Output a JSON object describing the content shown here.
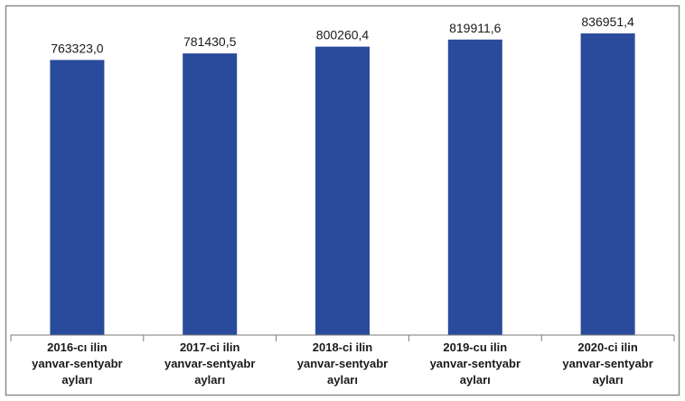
{
  "chart_data": {
    "type": "bar",
    "categories": [
      [
        "2016-cı ilin",
        "yanvar-sentyabr",
        "ayları"
      ],
      [
        "2017-ci ilin",
        "yanvar-sentyabr",
        "ayları"
      ],
      [
        "2018-ci ilin",
        "yanvar-sentyabr",
        "ayları"
      ],
      [
        "2019-cu ilin",
        "yanvar-sentyabr",
        "ayları"
      ],
      [
        "2020-ci ilin",
        "yanvar-sentyabr",
        "ayları"
      ]
    ],
    "values": [
      763323.0,
      781430.5,
      800260.4,
      819911.6,
      836951.4
    ],
    "value_labels": [
      "763323,0",
      "781430,5",
      "800260,4",
      "819911,6",
      "836951,4"
    ],
    "ylim": [
      0,
      880000
    ],
    "grid": false,
    "legend": "none",
    "colors": {
      "bar": "#2a4b9b",
      "border": "#8c8c8c",
      "axis": "#7a7a7a"
    }
  }
}
